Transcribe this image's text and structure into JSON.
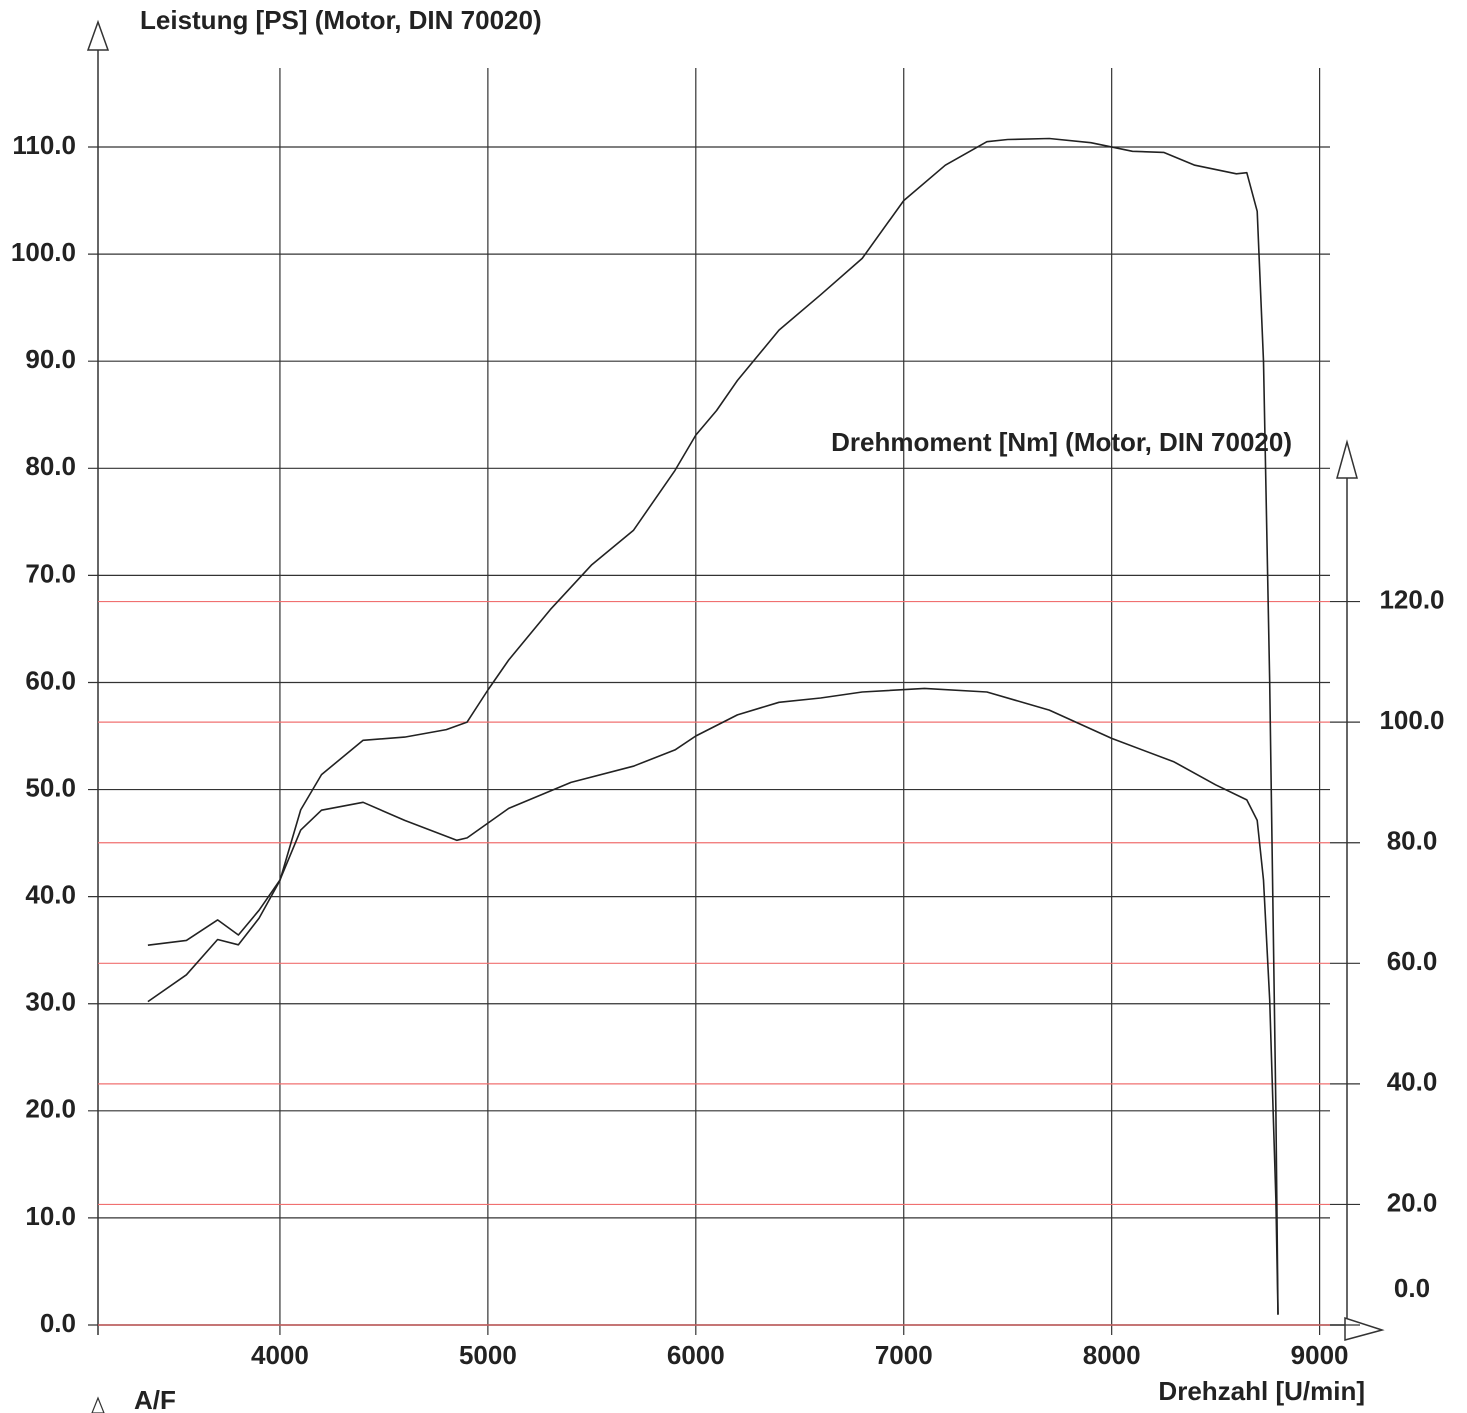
{
  "chart_data": {
    "type": "line",
    "title": "Leistung [PS] (Motor, DIN 70020)",
    "y2_title": "Drehmoment [Nm] (Motor, DIN 70020)",
    "x_label": "Drehzahl [U/min]",
    "annotation": "A/F",
    "xlim": [
      3125,
      9050
    ],
    "xticks": [
      4000,
      5000,
      6000,
      7000,
      8000,
      9000
    ],
    "ylim": [
      0,
      118.5
    ],
    "yticks": [
      {
        "value": 0,
        "label": "0.0"
      },
      {
        "value": 10,
        "label": "10.0"
      },
      {
        "value": 20,
        "label": "20.0"
      },
      {
        "value": 30,
        "label": "30.0"
      },
      {
        "value": 40,
        "label": "40.0"
      },
      {
        "value": 50,
        "label": "50.0"
      },
      {
        "value": 60,
        "label": "60.0"
      },
      {
        "value": 70,
        "label": "70.0"
      },
      {
        "value": 80,
        "label": "80.0"
      },
      {
        "value": 90,
        "label": "90.0"
      },
      {
        "value": 100,
        "label": "100.0"
      },
      {
        "value": 110,
        "label": "110.0"
      }
    ],
    "y2lim": [
      0,
      210.5
    ],
    "y2ticks": [
      {
        "value": 0,
        "label": "0.0"
      },
      {
        "value": 20,
        "label": "20.0"
      },
      {
        "value": 40,
        "label": "40.0"
      },
      {
        "value": 60,
        "label": "60.0"
      },
      {
        "value": 80,
        "label": "80.0"
      },
      {
        "value": 100,
        "label": "100.0"
      },
      {
        "value": 120,
        "label": "120.0"
      }
    ],
    "grid": true,
    "grid_color": "#333333",
    "y2_grid_color": "#f07070",
    "series": [
      {
        "name": "Leistung",
        "color": "#222222",
        "axis": "y",
        "x": [
          3365,
          3550,
          3700,
          3800,
          3900,
          4000,
          4100,
          4200,
          4400,
          4600,
          4800,
          4900,
          5000,
          5100,
          5300,
          5500,
          5700,
          5900,
          6000,
          6100,
          6200,
          6400,
          6600,
          6800,
          7000,
          7200,
          7400,
          7500,
          7700,
          7900,
          8100,
          8250,
          8400,
          8600,
          8650,
          8700,
          8730,
          8760,
          8790,
          8800
        ],
        "values": [
          30.2,
          32.7,
          36.0,
          35.5,
          38.0,
          41.5,
          48.1,
          51.4,
          54.6,
          54.9,
          55.6,
          56.3,
          59.3,
          62.1,
          66.8,
          71.0,
          74.2,
          79.8,
          83.1,
          85.4,
          88.2,
          92.9,
          96.2,
          99.6,
          105.0,
          108.3,
          110.5,
          110.7,
          110.8,
          110.4,
          109.6,
          109.5,
          108.3,
          107.5,
          107.6,
          104.0,
          90.0,
          60.0,
          20.0,
          1.0
        ]
      },
      {
        "name": "Drehmoment",
        "color": "#222222",
        "axis": "y2",
        "x": [
          3365,
          3550,
          3700,
          3800,
          3900,
          4000,
          4100,
          4200,
          4400,
          4600,
          4850,
          4900,
          5100,
          5400,
          5700,
          5900,
          6000,
          6200,
          6400,
          6600,
          6800,
          7100,
          7400,
          7700,
          8000,
          8300,
          8500,
          8650,
          8700,
          8730,
          8760,
          8790,
          8800
        ],
        "values": [
          63.0,
          63.8,
          67.2,
          64.7,
          68.8,
          73.8,
          82.1,
          85.4,
          86.7,
          83.7,
          80.4,
          80.8,
          85.7,
          90.0,
          92.7,
          95.4,
          97.7,
          101.2,
          103.3,
          104.0,
          105.0,
          105.6,
          105.0,
          102.0,
          97.3,
          93.4,
          89.6,
          87.1,
          83.7,
          73.8,
          53.9,
          20.7,
          1.7
        ]
      }
    ]
  }
}
